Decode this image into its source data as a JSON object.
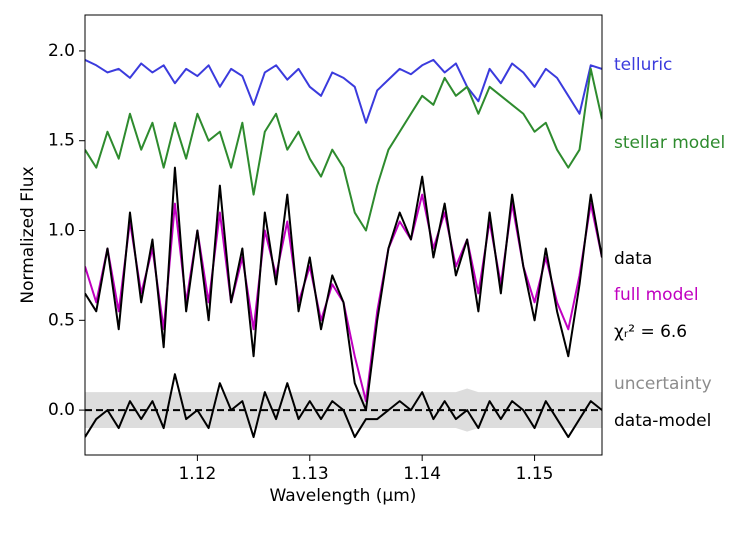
{
  "chart_data": {
    "type": "line",
    "xlabel": "Wavelength (μm)",
    "ylabel": "Normalized Flux",
    "x": [
      1.11,
      1.111,
      1.112,
      1.113,
      1.114,
      1.115,
      1.116,
      1.117,
      1.118,
      1.119,
      1.12,
      1.121,
      1.122,
      1.123,
      1.124,
      1.125,
      1.126,
      1.127,
      1.128,
      1.129,
      1.13,
      1.131,
      1.132,
      1.133,
      1.134,
      1.135,
      1.136,
      1.137,
      1.138,
      1.139,
      1.14,
      1.141,
      1.142,
      1.143,
      1.144,
      1.145,
      1.146,
      1.147,
      1.148,
      1.149,
      1.15,
      1.151,
      1.152,
      1.153,
      1.154,
      1.155,
      1.156
    ],
    "series": [
      {
        "name": "telluric",
        "color": "#3b3bdd",
        "values": [
          1.95,
          1.92,
          1.88,
          1.9,
          1.85,
          1.93,
          1.88,
          1.92,
          1.82,
          1.9,
          1.86,
          1.92,
          1.8,
          1.9,
          1.86,
          1.7,
          1.88,
          1.92,
          1.84,
          1.9,
          1.8,
          1.75,
          1.88,
          1.85,
          1.8,
          1.6,
          1.78,
          1.84,
          1.9,
          1.87,
          1.92,
          1.95,
          1.88,
          1.93,
          1.8,
          1.72,
          1.9,
          1.82,
          1.93,
          1.88,
          1.8,
          1.9,
          1.85,
          1.75,
          1.65,
          1.92,
          1.9
        ]
      },
      {
        "name": "stellar model",
        "color": "#2e8b2e",
        "values": [
          1.45,
          1.35,
          1.55,
          1.4,
          1.65,
          1.45,
          1.6,
          1.35,
          1.6,
          1.4,
          1.65,
          1.5,
          1.55,
          1.35,
          1.6,
          1.2,
          1.55,
          1.65,
          1.45,
          1.55,
          1.4,
          1.3,
          1.45,
          1.35,
          1.1,
          1.0,
          1.25,
          1.45,
          1.55,
          1.65,
          1.75,
          1.7,
          1.85,
          1.75,
          1.8,
          1.65,
          1.8,
          1.75,
          1.7,
          1.65,
          1.55,
          1.6,
          1.45,
          1.35,
          1.45,
          1.9,
          1.62
        ]
      },
      {
        "name": "data",
        "color": "#000000",
        "values": [
          0.65,
          0.55,
          0.9,
          0.45,
          1.1,
          0.6,
          0.95,
          0.35,
          1.35,
          0.55,
          1.0,
          0.5,
          1.25,
          0.6,
          0.9,
          0.3,
          1.1,
          0.7,
          1.2,
          0.55,
          0.85,
          0.45,
          0.75,
          0.6,
          0.15,
          0.0,
          0.5,
          0.9,
          1.1,
          0.95,
          1.3,
          0.85,
          1.15,
          0.75,
          0.95,
          0.55,
          1.1,
          0.65,
          1.2,
          0.8,
          0.5,
          0.9,
          0.55,
          0.3,
          0.7,
          1.2,
          0.85
        ]
      },
      {
        "name": "full model",
        "color": "#c000c0",
        "values": [
          0.8,
          0.6,
          0.9,
          0.55,
          1.05,
          0.65,
          0.9,
          0.45,
          1.15,
          0.6,
          1.0,
          0.6,
          1.1,
          0.6,
          0.85,
          0.45,
          1.0,
          0.75,
          1.05,
          0.6,
          0.8,
          0.5,
          0.7,
          0.6,
          0.3,
          0.05,
          0.55,
          0.9,
          1.05,
          0.95,
          1.2,
          0.9,
          1.1,
          0.8,
          0.95,
          0.65,
          1.05,
          0.7,
          1.15,
          0.8,
          0.6,
          0.85,
          0.6,
          0.45,
          0.75,
          1.15,
          0.85
        ]
      },
      {
        "name": "data-model",
        "color": "#000000",
        "values": [
          -0.15,
          -0.05,
          0.0,
          -0.1,
          0.05,
          -0.05,
          0.05,
          -0.1,
          0.2,
          -0.05,
          0.0,
          -0.1,
          0.15,
          0.0,
          0.05,
          -0.15,
          0.1,
          -0.05,
          0.15,
          -0.05,
          0.05,
          -0.05,
          0.05,
          0.0,
          -0.15,
          -0.05,
          -0.05,
          0.0,
          0.05,
          0.0,
          0.1,
          -0.05,
          0.05,
          -0.05,
          0.0,
          -0.1,
          0.05,
          -0.05,
          0.05,
          0.0,
          -0.1,
          0.05,
          -0.05,
          -0.15,
          -0.05,
          0.05,
          0.0
        ]
      }
    ],
    "uncertainty": {
      "name": "uncertainty",
      "color": "#dddddd",
      "values": [
        0.1,
        0.1,
        0.1,
        0.1,
        0.1,
        0.1,
        0.1,
        0.1,
        0.1,
        0.1,
        0.1,
        0.1,
        0.1,
        0.1,
        0.1,
        0.1,
        0.1,
        0.1,
        0.1,
        0.1,
        0.1,
        0.1,
        0.1,
        0.1,
        0.1,
        0.1,
        0.1,
        0.1,
        0.1,
        0.1,
        0.1,
        0.1,
        0.1,
        0.1,
        0.12,
        0.1,
        0.1,
        0.1,
        0.1,
        0.1,
        0.1,
        0.1,
        0.1,
        0.1,
        0.1,
        0.1,
        0.1
      ]
    },
    "reference_line": 0,
    "annotation": "χᵣ² = 6.6",
    "xlim": [
      1.11,
      1.156
    ],
    "xticks": [
      1.12,
      1.13,
      1.14,
      1.15
    ],
    "ylim": [
      -0.25,
      2.2
    ],
    "yticks": [
      {
        "value": 0,
        "label": "0.0"
      },
      0.5,
      {
        "value": 1,
        "label": "1.0"
      },
      1.5,
      {
        "value": 2,
        "label": "2.0"
      }
    ]
  }
}
